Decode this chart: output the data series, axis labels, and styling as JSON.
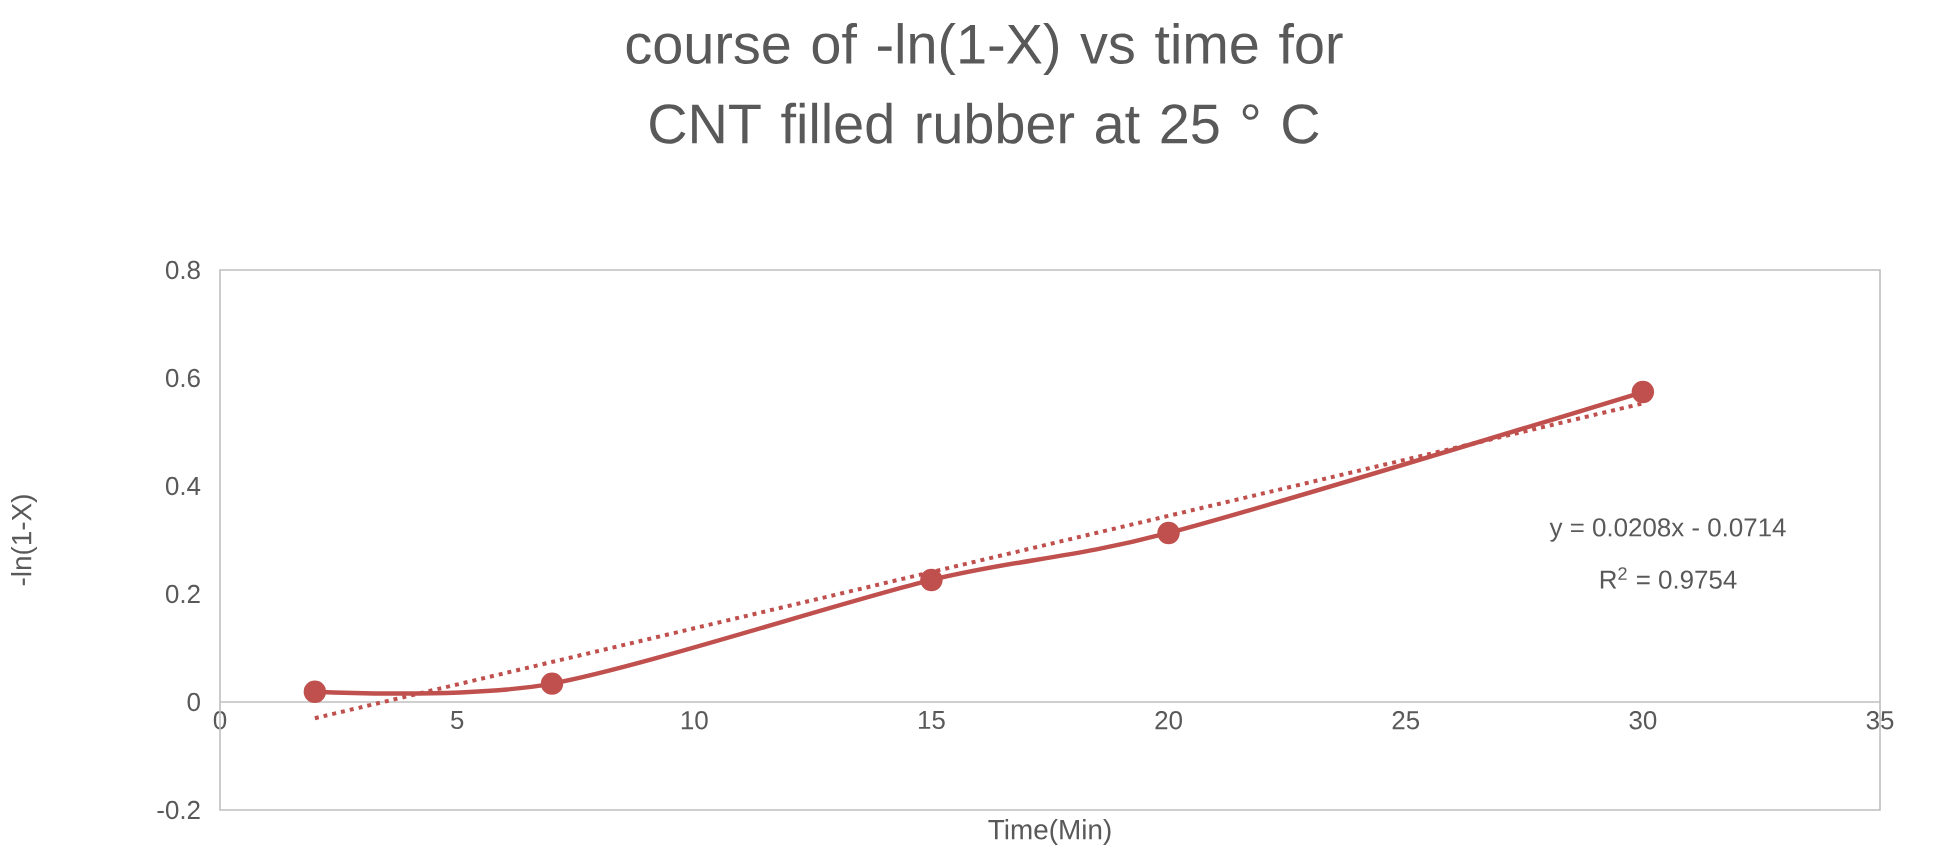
{
  "chart_data": {
    "type": "line",
    "title": "course of -ln(1-X) vs time for CNT filled rubber at 25 ° C",
    "xlabel": "Time(Min)",
    "ylabel": "-ln(1-X)",
    "xlim": [
      0,
      35
    ],
    "xticks": [
      0,
      5,
      10,
      15,
      20,
      25,
      30,
      35
    ],
    "ylim": [
      -0.2,
      0.8
    ],
    "yticks": [
      -0.2,
      0,
      0.2,
      0.4,
      0.6,
      0.8
    ],
    "series": [
      {
        "color": "#c0504d",
        "x": [
          2,
          7,
          15,
          20,
          30
        ],
        "values": [
          0.019,
          0.034,
          0.226,
          0.313,
          0.574
        ],
        "marker": "circle",
        "line_style": "solid"
      },
      {
        "type": "line",
        "color": "#c0504d",
        "x": [
          2,
          30
        ],
        "values": [
          -0.03,
          0.553
        ],
        "marker": "none",
        "line_style": "dotted"
      }
    ],
    "annotations": [
      "y = 0.0208x - 0.0714",
      "R$^{2}$ = 0.9754"
    ]
  }
}
